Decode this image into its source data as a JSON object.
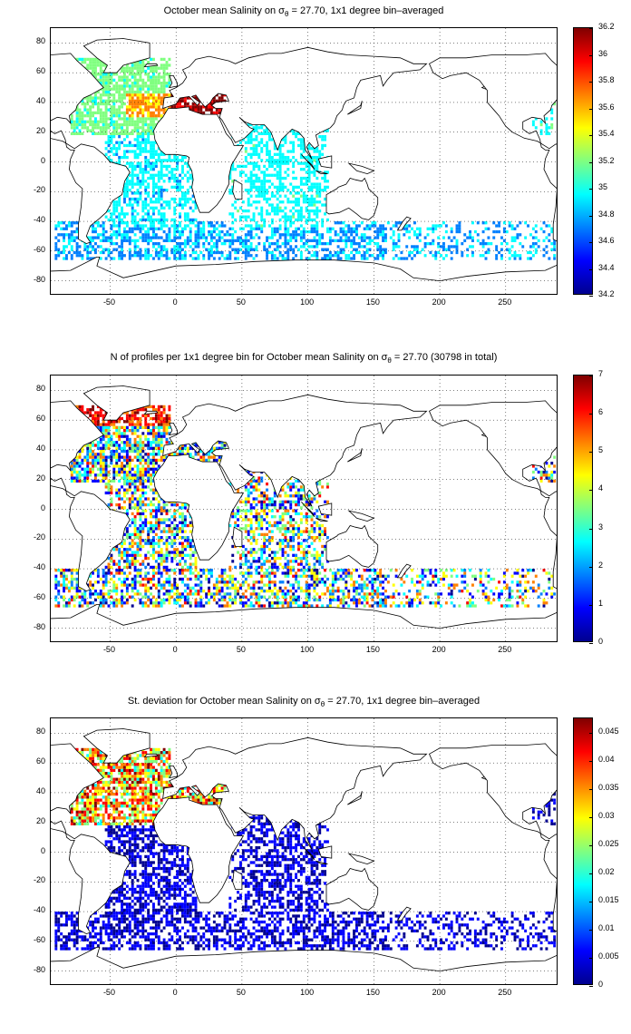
{
  "panels": [
    {
      "id": "mean",
      "title_pre": "October mean Salinity on σ",
      "title_sub": "θ",
      "title_post": " = 27.70, 1x1 degree bin–averaged",
      "colorbar_ticks": [
        "36.2",
        "36",
        "35.8",
        "35.6",
        "35.4",
        "35.2",
        "35",
        "34.8",
        "34.6",
        "34.4",
        "34.2"
      ],
      "colorbar_range": [
        34.2,
        36.2
      ]
    },
    {
      "id": "count",
      "title_pre": "N of profiles per 1x1 degree bin for October mean Salinity on σ",
      "title_sub": "θ",
      "title_post": " = 27.70 (30798 in total)",
      "colorbar_ticks": [
        "7",
        "6",
        "5",
        "4",
        "3",
        "2",
        "1",
        "0"
      ],
      "colorbar_range": [
        0,
        7
      ]
    },
    {
      "id": "std",
      "title_pre": "St. deviation for October mean Salinity on σ",
      "title_sub": "θ",
      "title_post": " = 27.70, 1x1 degree bin–averaged",
      "colorbar_ticks": [
        "0.045",
        "0.04",
        "0.035",
        "0.03",
        "0.025",
        "0.02",
        "0.015",
        "0.01",
        "0.005",
        "0"
      ],
      "colorbar_range": [
        0,
        0.0475
      ]
    }
  ],
  "axes": {
    "lat_ticks": [
      "80",
      "60",
      "40",
      "20",
      "0",
      "-20",
      "-40",
      "-60",
      "-80"
    ],
    "lon_ticks": [
      "-50",
      "0",
      "50",
      "100",
      "150",
      "200",
      "250"
    ],
    "lon_range": [
      -95,
      290
    ],
    "lat_range": [
      -90,
      90
    ],
    "grid": "dotted"
  },
  "colors": {
    "coast": "#000000",
    "land": "#ffffff",
    "colormap": [
      "#00008f",
      "#0000ff",
      "#0080ff",
      "#00ffff",
      "#80ff80",
      "#ffff00",
      "#ff8000",
      "#ff0000",
      "#800000"
    ]
  }
}
